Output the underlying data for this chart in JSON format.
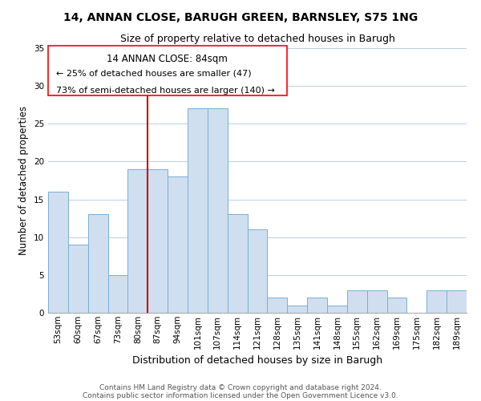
{
  "title1": "14, ANNAN CLOSE, BARUGH GREEN, BARNSLEY, S75 1NG",
  "title2": "Size of property relative to detached houses in Barugh",
  "xlabel": "Distribution of detached houses by size in Barugh",
  "ylabel": "Number of detached properties",
  "footer1": "Contains HM Land Registry data © Crown copyright and database right 2024.",
  "footer2": "Contains public sector information licensed under the Open Government Licence v3.0.",
  "categories": [
    "53sqm",
    "60sqm",
    "67sqm",
    "73sqm",
    "80sqm",
    "87sqm",
    "94sqm",
    "101sqm",
    "107sqm",
    "114sqm",
    "121sqm",
    "128sqm",
    "135sqm",
    "141sqm",
    "148sqm",
    "155sqm",
    "162sqm",
    "169sqm",
    "175sqm",
    "182sqm",
    "189sqm"
  ],
  "values": [
    16,
    9,
    13,
    5,
    19,
    19,
    18,
    27,
    27,
    13,
    11,
    2,
    1,
    2,
    1,
    3,
    3,
    2,
    0,
    3,
    3
  ],
  "bar_color": "#cfdff0",
  "bar_edge_color": "#7aadd4",
  "ylim": [
    0,
    35
  ],
  "yticks": [
    0,
    5,
    10,
    15,
    20,
    25,
    30,
    35
  ],
  "vline_color": "#cc0000",
  "vline_index": 5,
  "annotation_title": "14 ANNAN CLOSE: 84sqm",
  "annotation_line1": "← 25% of detached houses are smaller (47)",
  "annotation_line2": "73% of semi-detached houses are larger (140) →",
  "title1_fontsize": 10,
  "title2_fontsize": 9,
  "ylabel_fontsize": 8.5,
  "xlabel_fontsize": 9,
  "tick_fontsize": 7.5,
  "footer_fontsize": 6.5
}
